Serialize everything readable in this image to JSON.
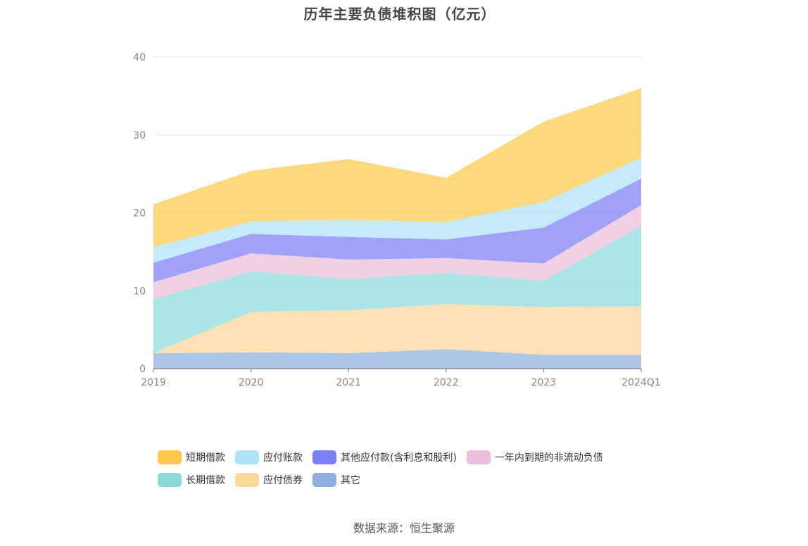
{
  "source_note": "数据来源：恒生聚源",
  "chart_data": {
    "type": "area",
    "stacked": true,
    "title": "历年主要负债堆积图（亿元）",
    "xlabel": "",
    "ylabel": "",
    "categories": [
      "2019",
      "2020",
      "2021",
      "2022",
      "2023",
      "2024Q1"
    ],
    "ylim": [
      0,
      40
    ],
    "yticks": [
      0,
      10,
      20,
      30,
      40
    ],
    "grid": true,
    "legend_position": "bottom",
    "series": [
      {
        "name": "其它",
        "color": "#8eaedd",
        "values": [
          2.0,
          2.1,
          2.0,
          2.5,
          1.8,
          1.8
        ]
      },
      {
        "name": "应付债券",
        "color": "#fdd79a",
        "values": [
          0.0,
          5.2,
          5.5,
          5.8,
          6.1,
          6.2
        ]
      },
      {
        "name": "长期借款",
        "color": "#8bd9d9",
        "values": [
          6.9,
          5.2,
          4.0,
          4.0,
          3.4,
          10.3
        ]
      },
      {
        "name": "一年内到期的非流动负债",
        "color": "#ebbcdb",
        "values": [
          2.2,
          2.3,
          2.5,
          1.9,
          2.2,
          2.7
        ]
      },
      {
        "name": "其他应付款(含利息和股利)",
        "color": "#7b7ef5",
        "values": [
          2.5,
          2.5,
          2.9,
          2.4,
          4.6,
          3.4
        ]
      },
      {
        "name": "应付账款",
        "color": "#aee3fa",
        "values": [
          2.0,
          1.6,
          2.2,
          2.2,
          3.3,
          2.7
        ]
      },
      {
        "name": "短期借款",
        "color": "#fec94b",
        "values": [
          5.5,
          6.5,
          7.8,
          5.7,
          10.3,
          8.9
        ]
      }
    ],
    "legend_order": [
      "短期借款",
      "应付账款",
      "其他应付款(含利息和股利)",
      "一年内到期的非流动负债",
      "长期借款",
      "应付债券",
      "其它"
    ]
  }
}
